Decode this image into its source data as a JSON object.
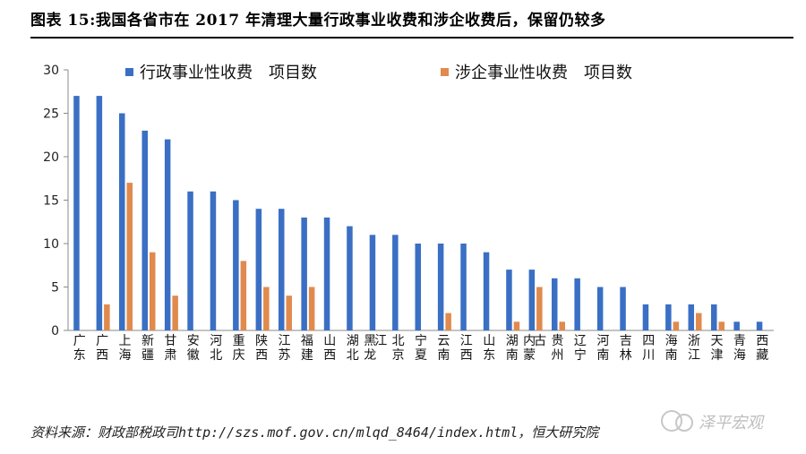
{
  "title": "图表 15:我国各省市在 2017 年清理大量行政事业收费和涉企收费后，保留仍较多",
  "source": "资料来源：财政部税政司http://szs.mof.gov.cn/mlqd_8464/index.html，恒大研究院",
  "watermark_text": "泽平宏观",
  "chart_data": {
    "type": "bar",
    "title": "",
    "xlabel": "",
    "ylabel": "",
    "ylim": [
      0,
      30
    ],
    "yticks": [
      "0",
      "5",
      "10",
      "15",
      "20",
      "25",
      "30"
    ],
    "grid": false,
    "legend_position": "top",
    "categories": [
      "广东",
      "广西",
      "上海",
      "新疆",
      "甘肃",
      "安徽",
      "河北",
      "重庆",
      "陕西",
      "江苏",
      "福建",
      "山西",
      "湖北",
      "黑龙江",
      "北京",
      "宁夏",
      "云南",
      "江西",
      "山东",
      "湖南",
      "内蒙古",
      "贵州",
      "辽宁",
      "河南",
      "吉林",
      "四川",
      "海南",
      "浙江",
      "天津",
      "青海",
      "西藏"
    ],
    "category_lines": [
      [
        "广东"
      ],
      [
        "广西"
      ],
      [
        "上海"
      ],
      [
        "新疆"
      ],
      [
        "甘肃"
      ],
      [
        "安徽"
      ],
      [
        "河北"
      ],
      [
        "重庆"
      ],
      [
        "陕西"
      ],
      [
        "江苏"
      ],
      [
        "福建"
      ],
      [
        "山西"
      ],
      [
        "湖北"
      ],
      [
        "黑龙",
        "江"
      ],
      [
        "北京"
      ],
      [
        "宁夏"
      ],
      [
        "云南"
      ],
      [
        "江西"
      ],
      [
        "山东"
      ],
      [
        "湖南"
      ],
      [
        "内蒙",
        "古"
      ],
      [
        "贵州"
      ],
      [
        "辽宁"
      ],
      [
        "河南"
      ],
      [
        "吉林"
      ],
      [
        "四川"
      ],
      [
        "海南"
      ],
      [
        "浙江"
      ],
      [
        "天津"
      ],
      [
        "青海"
      ],
      [
        "西藏"
      ]
    ],
    "series": [
      {
        "name": "行政事业性收费　项目数",
        "color": "#3a6fc4",
        "values": [
          27,
          27,
          25,
          23,
          22,
          16,
          16,
          15,
          14,
          14,
          13,
          13,
          12,
          11,
          11,
          10,
          10,
          10,
          9,
          7,
          7,
          6,
          6,
          5,
          5,
          3,
          3,
          3,
          3,
          1,
          1
        ]
      },
      {
        "name": "涉企事业性收费　项目数",
        "color": "#e08a4e",
        "values": [
          0,
          3,
          17,
          9,
          4,
          0,
          0,
          8,
          5,
          4,
          5,
          0,
          0,
          0,
          0,
          0,
          2,
          0,
          0,
          1,
          5,
          1,
          0,
          0,
          0,
          0,
          1,
          2,
          1,
          0,
          0
        ]
      }
    ]
  }
}
